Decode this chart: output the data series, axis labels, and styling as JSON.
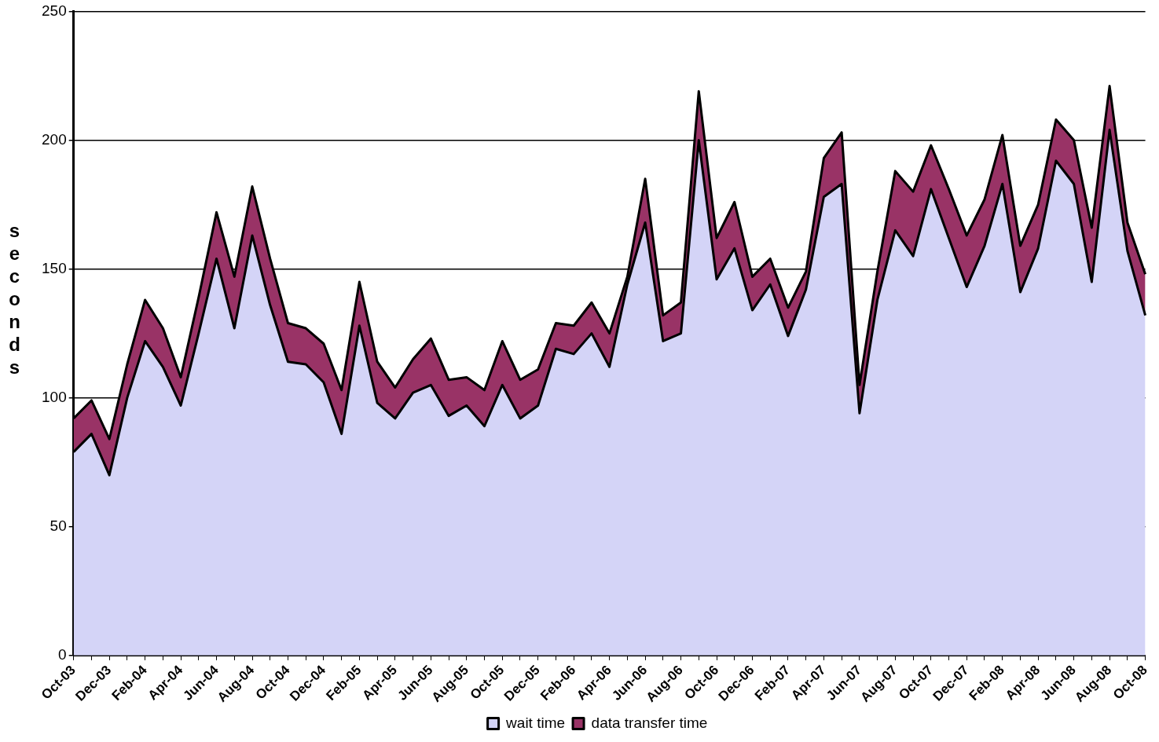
{
  "chart_data": {
    "type": "area",
    "ylabel": "seconds",
    "stacked": true,
    "grid": "y",
    "legend": "bottom",
    "marker": "none",
    "categories": [
      "Oct-03",
      null,
      "Dec-03",
      null,
      "Feb-04",
      null,
      "Apr-04",
      null,
      "Jun-04",
      null,
      "Aug-04",
      null,
      "Oct-04",
      null,
      "Dec-04",
      null,
      "Feb-05",
      null,
      "Apr-05",
      null,
      "Jun-05",
      null,
      "Aug-05",
      null,
      "Oct-05",
      null,
      "Dec-05",
      null,
      "Feb-06",
      null,
      "Apr-06",
      null,
      "Jun-06",
      null,
      "Aug-06",
      null,
      "Oct-06",
      null,
      "Dec-06",
      null,
      "Feb-07",
      null,
      "Apr-07",
      null,
      "Jun-07",
      null,
      "Aug-07",
      null,
      "Oct-07",
      null,
      "Dec-07",
      null,
      "Feb-08",
      null,
      "Apr-08",
      null,
      "Jun-08",
      null,
      "Aug-08",
      null,
      "Oct-08"
    ],
    "series": [
      {
        "name": "wait time",
        "color": "#d4d4f7",
        "values": [
          79,
          86,
          70,
          100,
          122,
          112,
          97,
          125,
          154,
          127,
          163,
          136,
          114,
          113,
          106,
          86,
          128,
          98,
          92,
          102,
          105,
          93,
          97,
          89,
          105,
          92,
          97,
          119,
          117,
          125,
          112,
          144,
          168,
          122,
          125,
          200,
          146,
          158,
          134,
          144,
          124,
          142,
          178,
          183,
          94,
          138,
          165,
          155,
          181,
          162,
          143,
          159,
          183,
          141,
          158,
          192,
          183,
          145,
          204,
          157,
          132
        ]
      },
      {
        "name": "data transfer time",
        "color": "#993366",
        "values": [
          13,
          13,
          14,
          13,
          16,
          15,
          11,
          14,
          18,
          20,
          19,
          18,
          15,
          14,
          15,
          17,
          17,
          16,
          12,
          13,
          18,
          14,
          11,
          14,
          17,
          15,
          14,
          10,
          11,
          12,
          13,
          3,
          17,
          10,
          12,
          19,
          16,
          18,
          13,
          10,
          11,
          7,
          15,
          20,
          11,
          11,
          23,
          25,
          17,
          19,
          20,
          18,
          19,
          18,
          17,
          16,
          17,
          21,
          17,
          11,
          16
        ]
      }
    ],
    "ylim": [
      0,
      250
    ],
    "yticks": [
      0,
      50,
      100,
      150,
      200,
      250
    ]
  }
}
